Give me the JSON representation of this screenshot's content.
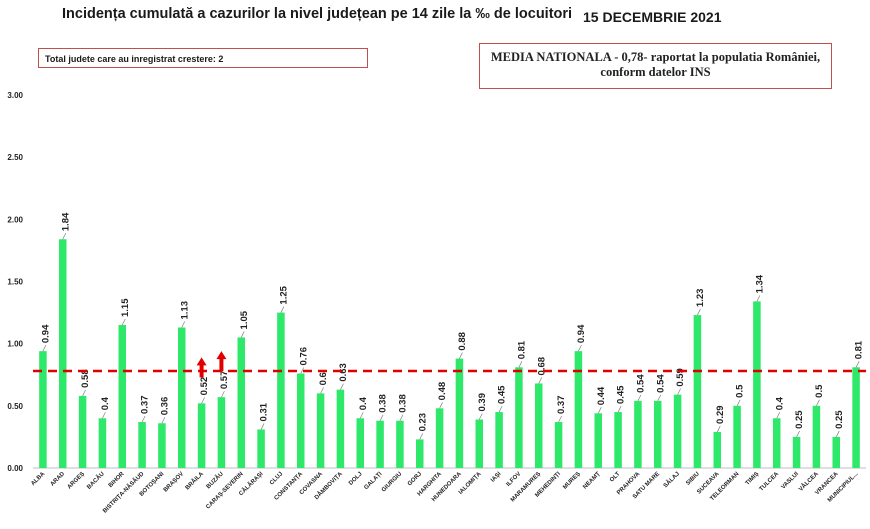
{
  "header": {
    "title": "Incidența cumulată a cazurilor la nivel județean pe 14 zile la ‰ de locuitori",
    "date": "15 DECEMBRIE 2021",
    "counties_increase_note": "Total judete care au inregistrat crestere: 2",
    "national_average_line1": "MEDIA NATIONALA - 0,78-  raportat la populatia României,",
    "national_average_line2": "conform datelor INS"
  },
  "colors": {
    "bar": "#2ee86a",
    "reference_line": "#e00000",
    "arrow": "#e00000",
    "box_border": "#c0504d"
  },
  "chart_data": {
    "type": "bar",
    "title": "Incidența cumulată a cazurilor la nivel județean pe 14 zile la ‰ de locuitori",
    "xlabel": "",
    "ylabel": "",
    "ylim": [
      0,
      3
    ],
    "yticks": [
      "0.00",
      "0.50",
      "1.00",
      "1.50",
      "2.00",
      "2.50",
      "3.00"
    ],
    "grid": false,
    "reference_line": {
      "value": 0.78,
      "style": "dashed"
    },
    "increase_arrows": [
      "BRĂILA",
      "BUZĂU"
    ],
    "categories": [
      "ALBA",
      "ARAD",
      "ARGEȘ",
      "BACĂU",
      "BIHOR",
      "BISTRIȚA-NĂSĂUD",
      "BOTOȘANI",
      "BRAȘOV",
      "BRĂILA",
      "BUZĂU",
      "CARAȘ-SEVERIN",
      "CĂLĂRAȘI",
      "CLUJ",
      "CONSTANȚA",
      "COVASNA",
      "DÂMBOVIȚA",
      "DOLJ",
      "GALAȚI",
      "GIURGIU",
      "GORJ",
      "HARGHITA",
      "HUNEDOARA",
      "IALOMIȚA",
      "IAȘI",
      "ILFOV",
      "MARAMUREȘ",
      "MEHEDINȚI",
      "MUREȘ",
      "NEAMȚ",
      "OLT",
      "PRAHOVA",
      "SATU MARE",
      "SĂLAJ",
      "SIBIU",
      "SUCEAVA",
      "TELEORMAN",
      "TIMIȘ",
      "TULCEA",
      "VASLUI",
      "VÂLCEA",
      "VRANCEA",
      "MUNICIPIUL..."
    ],
    "values": [
      0.94,
      1.84,
      0.58,
      0.4,
      1.15,
      0.37,
      0.36,
      1.13,
      0.52,
      0.57,
      1.05,
      0.31,
      1.25,
      0.76,
      0.6,
      0.63,
      0.4,
      0.38,
      0.38,
      0.23,
      0.48,
      0.88,
      0.39,
      0.45,
      0.81,
      0.68,
      0.37,
      0.94,
      0.44,
      0.45,
      0.54,
      0.54,
      0.59,
      1.23,
      0.29,
      0.5,
      1.34,
      0.4,
      0.25,
      0.5,
      0.25,
      0.81
    ],
    "value_labels": [
      "0.94",
      "1.84",
      "0.58",
      "0.4",
      "1.15",
      "0.37",
      "0.36",
      "1.13",
      "0.52",
      "0.57",
      "1.05",
      "0.31",
      "1.25",
      "0.76",
      "0.6",
      "0.63",
      "0.4",
      "0.38",
      "0.38",
      "0.23",
      "0.48",
      "0.88",
      "0.39",
      "0.45",
      "0.81",
      "0.68",
      "0.37",
      "0.94",
      "0.44",
      "0.45",
      "0.54",
      "0.54",
      "0.59",
      "1.23",
      "0.29",
      "0.5",
      "1.34",
      "0.4",
      "0.25",
      "0.5",
      "0.25",
      "0.81"
    ]
  }
}
